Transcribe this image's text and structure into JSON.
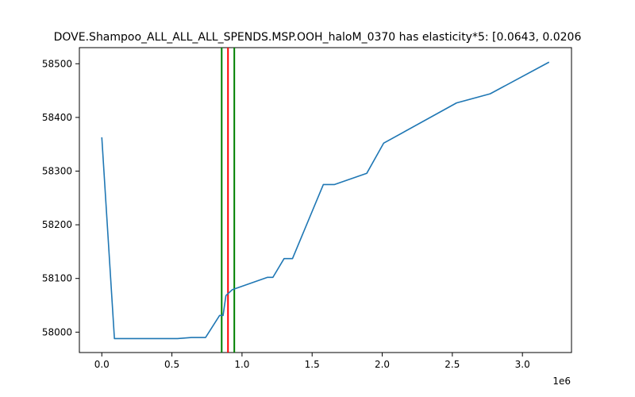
{
  "chart_data": {
    "type": "line",
    "title": "DOVE.Shampoo_ALL_ALL_ALL_SPENDS.MSP.OOH_haloM_0370 has elasticity*5:   [0.0643, 0.0206",
    "xlabel": "",
    "ylabel": "",
    "x_offset_label": "1e6",
    "xlim": [
      -0.16,
      3.35
    ],
    "ylim": [
      57962,
      58530
    ],
    "x_ticks": [
      0.0,
      0.5,
      1.0,
      1.5,
      2.0,
      2.5,
      3.0
    ],
    "x_tick_labels": [
      "0.0",
      "0.5",
      "1.0",
      "1.5",
      "2.0",
      "2.5",
      "3.0"
    ],
    "y_ticks": [
      58000,
      58100,
      58200,
      58300,
      58400,
      58500
    ],
    "y_tick_labels": [
      "58000",
      "58100",
      "58200",
      "58300",
      "58400",
      "58500"
    ],
    "grid": false,
    "series": [
      {
        "color": "#1f77b4",
        "x": [
          0.0,
          0.09,
          0.18,
          0.28,
          0.38,
          0.54,
          0.64,
          0.74,
          0.84,
          0.865,
          0.885,
          0.93,
          1.18,
          1.22,
          1.3,
          1.36,
          1.58,
          1.66,
          1.89,
          2.01,
          2.53,
          2.77,
          3.19
        ],
        "y": [
          58363,
          57988,
          57988,
          57988,
          57988,
          57988,
          57990,
          57990,
          58031,
          58031,
          58068,
          58079,
          58102,
          58102,
          58137,
          58137,
          58275,
          58275,
          58296,
          58352,
          58427,
          58444,
          58503
        ]
      }
    ],
    "vlines": [
      {
        "x": 0.855,
        "color": "#008000"
      },
      {
        "x": 0.9,
        "color": "#ff0000"
      },
      {
        "x": 0.945,
        "color": "#008000"
      }
    ]
  }
}
